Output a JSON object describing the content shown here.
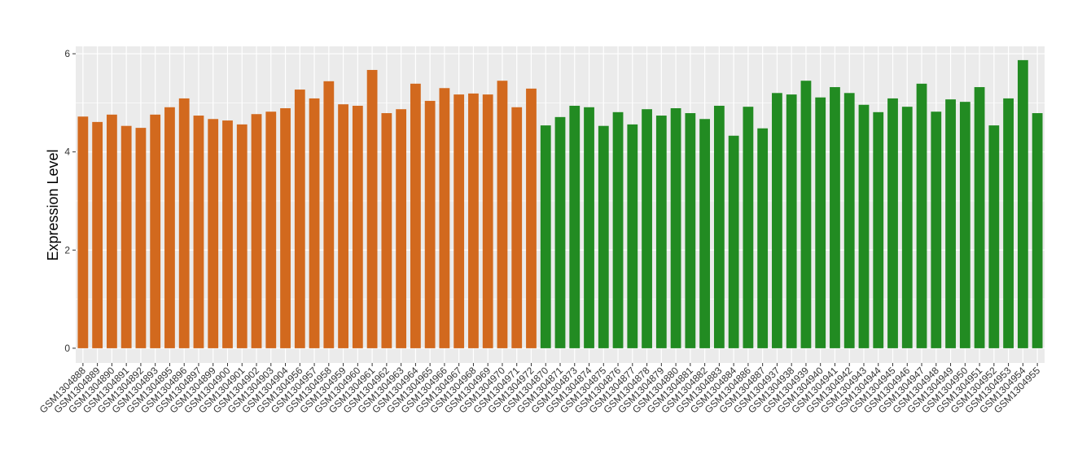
{
  "chart_data": {
    "type": "bar",
    "y_label": "Expression Level",
    "categories": [
      "GSM1304888",
      "GSM1304889",
      "GSM1304890",
      "GSM1304891",
      "GSM1304892",
      "GSM1304893",
      "GSM1304895",
      "GSM1304896",
      "GSM1304897",
      "GSM1304899",
      "GSM1304900",
      "GSM1304901",
      "GSM1304902",
      "GSM1304903",
      "GSM1304904",
      "GSM1304956",
      "GSM1304957",
      "GSM1304958",
      "GSM1304959",
      "GSM1304960",
      "GSM1304961",
      "GSM1304962",
      "GSM1304963",
      "GSM1304964",
      "GSM1304965",
      "GSM1304966",
      "GSM1304967",
      "GSM1304968",
      "GSM1304969",
      "GSM1304970",
      "GSM1304971",
      "GSM1304972",
      "GSM1304870",
      "GSM1304871",
      "GSM1304873",
      "GSM1304874",
      "GSM1304875",
      "GSM1304876",
      "GSM1304877",
      "GSM1304878",
      "GSM1304879",
      "GSM1304880",
      "GSM1304881",
      "GSM1304882",
      "GSM1304883",
      "GSM1304884",
      "GSM1304886",
      "GSM1304887",
      "GSM1304937",
      "GSM1304938",
      "GSM1304939",
      "GSM1304940",
      "GSM1304941",
      "GSM1304942",
      "GSM1304943",
      "GSM1304944",
      "GSM1304945",
      "GSM1304946",
      "GSM1304947",
      "GSM1304948",
      "GSM1304949",
      "GSM1304950",
      "GSM1304951",
      "GSM1304952",
      "GSM1304953",
      "GSM1304954",
      "GSM1304955"
    ],
    "values": [
      4.72,
      4.61,
      4.76,
      4.53,
      4.49,
      4.76,
      4.91,
      5.09,
      4.74,
      4.67,
      4.64,
      4.56,
      4.77,
      4.82,
      4.89,
      5.27,
      5.09,
      5.44,
      4.97,
      4.94,
      5.67,
      4.79,
      4.87,
      5.39,
      5.04,
      5.3,
      5.17,
      5.19,
      5.17,
      5.45,
      4.91,
      5.29,
      4.54,
      4.71,
      4.94,
      4.91,
      4.53,
      4.81,
      4.56,
      4.87,
      4.74,
      4.89,
      4.79,
      4.67,
      4.94,
      4.33,
      4.92,
      4.48,
      5.2,
      5.17,
      5.45,
      5.11,
      5.32,
      5.2,
      4.96,
      4.81,
      5.09,
      4.92,
      5.39,
      4.82,
      5.07,
      5.02,
      5.32,
      4.54,
      5.09,
      5.87,
      4.79
    ],
    "colors": [
      "#d2691e",
      "#d2691e",
      "#d2691e",
      "#d2691e",
      "#d2691e",
      "#d2691e",
      "#d2691e",
      "#d2691e",
      "#d2691e",
      "#d2691e",
      "#d2691e",
      "#d2691e",
      "#d2691e",
      "#d2691e",
      "#d2691e",
      "#d2691e",
      "#d2691e",
      "#d2691e",
      "#d2691e",
      "#d2691e",
      "#d2691e",
      "#d2691e",
      "#d2691e",
      "#d2691e",
      "#d2691e",
      "#d2691e",
      "#d2691e",
      "#d2691e",
      "#d2691e",
      "#d2691e",
      "#d2691e",
      "#d2691e",
      "#228b22",
      "#228b22",
      "#228b22",
      "#228b22",
      "#228b22",
      "#228b22",
      "#228b22",
      "#228b22",
      "#228b22",
      "#228b22",
      "#228b22",
      "#228b22",
      "#228b22",
      "#228b22",
      "#228b22",
      "#228b22",
      "#228b22",
      "#228b22",
      "#228b22",
      "#228b22",
      "#228b22",
      "#228b22",
      "#228b22",
      "#228b22",
      "#228b22",
      "#228b22",
      "#228b22",
      "#228b22",
      "#228b22",
      "#228b22",
      "#228b22",
      "#228b22",
      "#228b22",
      "#228b22",
      "#228b22"
    ],
    "ylim": [
      -0.3,
      6.15
    ],
    "yticks": [
      0,
      2,
      4,
      6
    ],
    "grid": true,
    "panel_color": "#ebebeb"
  }
}
